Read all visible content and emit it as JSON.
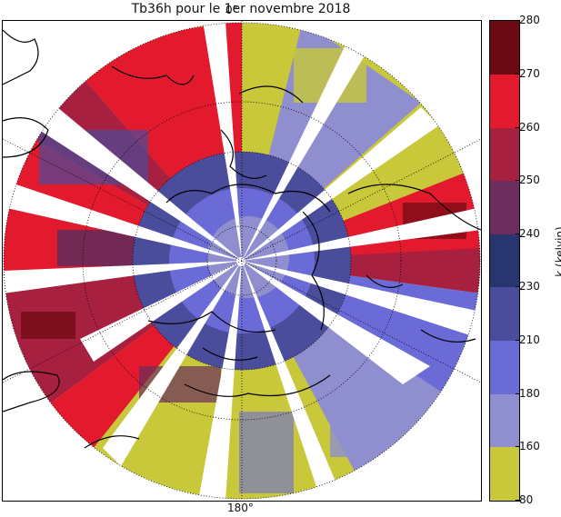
{
  "title": "Tb36h pour le 1er novembre 2018",
  "longitude_labels": {
    "top": "0°",
    "bottom": "180°"
  },
  "colorbar": {
    "label": "k (kelvin)",
    "ticks": [
      "280",
      "270",
      "260",
      "250",
      "240",
      "230",
      "210",
      "180",
      "160",
      "80"
    ],
    "bands": [
      {
        "from": 270,
        "to": 280,
        "color": "#6b0a12"
      },
      {
        "from": 260,
        "to": 270,
        "color": "#e31a2e"
      },
      {
        "from": 250,
        "to": 260,
        "color": "#a8203f"
      },
      {
        "from": 240,
        "to": 250,
        "color": "#6a2d5c"
      },
      {
        "from": 230,
        "to": 240,
        "color": "#27366e"
      },
      {
        "from": 210,
        "to": 230,
        "color": "#4a4c9c"
      },
      {
        "from": 180,
        "to": 210,
        "color": "#6b6bd8"
      },
      {
        "from": 160,
        "to": 180,
        "color": "#8f8fd0"
      },
      {
        "from": 80,
        "to": 160,
        "color": "#c8c83a"
      }
    ]
  },
  "map": {
    "projection": "north polar stereographic",
    "graticule": "dotted"
  }
}
